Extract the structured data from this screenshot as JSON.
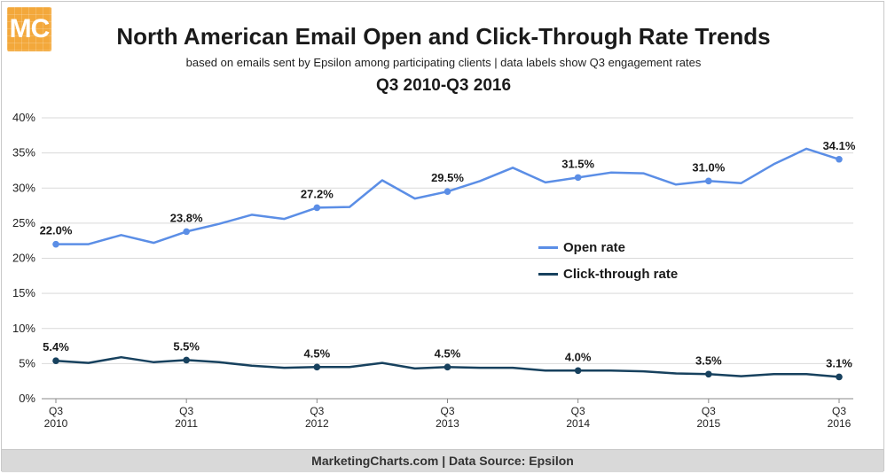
{
  "logo": {
    "text": "MC"
  },
  "header": {
    "title": "North American Email Open and Click-Through Rate Trends",
    "subtitle": "based on emails sent by Epsilon among participating clients | data labels show Q3 engagement rates",
    "period": "Q3 2010-Q3 2016"
  },
  "footer": {
    "text": "MarketingCharts.com | Data Source: Epsilon"
  },
  "colors": {
    "open": "#5b8ee6",
    "ctr": "#17415e",
    "grid": "#d9d9d9",
    "axis": "#888888"
  },
  "chart_data": {
    "type": "line",
    "title": "North American Email Open and Click-Through Rate Trends",
    "xlabel": "",
    "ylabel": "",
    "ylim": [
      0,
      40
    ],
    "yticks": [
      "0%",
      "5%",
      "10%",
      "15%",
      "20%",
      "25%",
      "30%",
      "35%",
      "40%"
    ],
    "grid": true,
    "legend": "middle-right",
    "x": [
      "Q3 2010",
      "Q4 2010",
      "Q1 2011",
      "Q2 2011",
      "Q3 2011",
      "Q4 2011",
      "Q1 2012",
      "Q2 2012",
      "Q3 2012",
      "Q4 2012",
      "Q1 2013",
      "Q2 2013",
      "Q3 2013",
      "Q4 2013",
      "Q1 2014",
      "Q2 2014",
      "Q3 2014",
      "Q4 2014",
      "Q1 2015",
      "Q2 2015",
      "Q3 2015",
      "Q4 2015",
      "Q1 2016",
      "Q2 2016",
      "Q3 2016"
    ],
    "xtick_labels": [
      {
        "index": 0,
        "line1": "Q3",
        "line2": "2010"
      },
      {
        "index": 4,
        "line1": "Q3",
        "line2": "2011"
      },
      {
        "index": 8,
        "line1": "Q3",
        "line2": "2012"
      },
      {
        "index": 12,
        "line1": "Q3",
        "line2": "2013"
      },
      {
        "index": 16,
        "line1": "Q3",
        "line2": "2014"
      },
      {
        "index": 20,
        "line1": "Q3",
        "line2": "2015"
      },
      {
        "index": 24,
        "line1": "Q3",
        "line2": "2016"
      }
    ],
    "series": [
      {
        "name": "Open rate",
        "values": [
          22.0,
          22.0,
          23.3,
          22.2,
          23.8,
          24.9,
          26.2,
          25.6,
          27.2,
          27.3,
          31.1,
          28.5,
          29.5,
          31.0,
          32.9,
          30.8,
          31.5,
          32.2,
          32.1,
          30.5,
          31.0,
          30.7,
          33.4,
          35.6,
          34.1
        ],
        "labels": [
          {
            "index": 0,
            "text": "22.0%"
          },
          {
            "index": 4,
            "text": "23.8%"
          },
          {
            "index": 8,
            "text": "27.2%"
          },
          {
            "index": 12,
            "text": "29.5%"
          },
          {
            "index": 16,
            "text": "31.5%"
          },
          {
            "index": 20,
            "text": "31.0%"
          },
          {
            "index": 24,
            "text": "34.1%"
          }
        ]
      },
      {
        "name": "Click-through rate",
        "values": [
          5.4,
          5.1,
          5.9,
          5.2,
          5.5,
          5.2,
          4.7,
          4.4,
          4.5,
          4.5,
          5.1,
          4.3,
          4.5,
          4.4,
          4.4,
          4.0,
          4.0,
          4.0,
          3.9,
          3.6,
          3.5,
          3.2,
          3.5,
          3.5,
          3.1
        ],
        "labels": [
          {
            "index": 0,
            "text": "5.4%"
          },
          {
            "index": 4,
            "text": "5.5%"
          },
          {
            "index": 8,
            "text": "4.5%"
          },
          {
            "index": 12,
            "text": "4.5%"
          },
          {
            "index": 16,
            "text": "4.0%"
          },
          {
            "index": 20,
            "text": "3.5%"
          },
          {
            "index": 24,
            "text": "3.1%"
          }
        ]
      }
    ]
  }
}
